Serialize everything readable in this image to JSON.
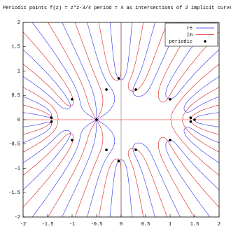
{
  "chart_data": {
    "type": "implicit",
    "title": "Periodic points f(z) = z*z-3/4 period = 4 as intersections of 2 implicit curves",
    "xlim": [
      -2,
      2
    ],
    "ylim": [
      -2,
      2
    ],
    "xticks": [
      -2,
      -1.5,
      -1,
      -0.5,
      0,
      0.5,
      1,
      1.5,
      2
    ],
    "yticks": [
      -2,
      -1.5,
      -1,
      -0.5,
      0,
      0.5,
      1,
      1.5,
      2
    ],
    "legend": "top-right",
    "series": [
      {
        "name": "re",
        "color": "#2b2bf0"
      },
      {
        "name": "im",
        "color": "#e01818"
      },
      {
        "name": "periodic",
        "color": "#000000",
        "x": [
          1.5,
          -0.5,
          -1.42,
          -1.42,
          1.42,
          1.42,
          -1.0,
          -1.0,
          1.0,
          1.0,
          -0.3,
          -0.3,
          0.3,
          0.3,
          -0.05,
          -0.05
        ],
        "values": [
          0,
          0,
          0.04,
          -0.04,
          0.04,
          -0.04,
          0.42,
          -0.42,
          0.42,
          -0.42,
          0.62,
          -0.62,
          0.62,
          -0.62,
          0.85,
          -0.85
        ]
      }
    ]
  }
}
